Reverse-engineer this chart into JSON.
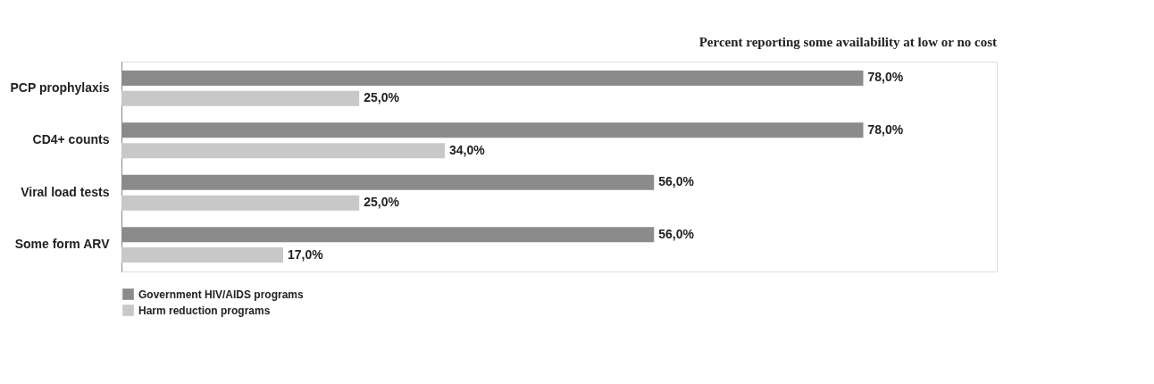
{
  "chart_data": {
    "type": "bar",
    "orientation": "horizontal",
    "title": "Percent reporting some availability at low or no cost",
    "categories": [
      "PCP prophylaxis",
      "CD4+ counts",
      "Viral load tests",
      "Some form ARV"
    ],
    "series": [
      {
        "name": "Government HIV/AIDS programs",
        "color": "#8b8b8d",
        "values": [
          78,
          78,
          56,
          56
        ],
        "value_labels": [
          "78,0%",
          "78,0%",
          "56,0%",
          "56,0%"
        ]
      },
      {
        "name": "Harm reduction programs",
        "color": "#c8c8c8",
        "values": [
          25,
          34,
          25,
          17
        ],
        "value_labels": [
          "25,0%",
          "34,0%",
          "25,0%",
          "17,0%"
        ]
      }
    ],
    "legend": "bottom left"
  }
}
